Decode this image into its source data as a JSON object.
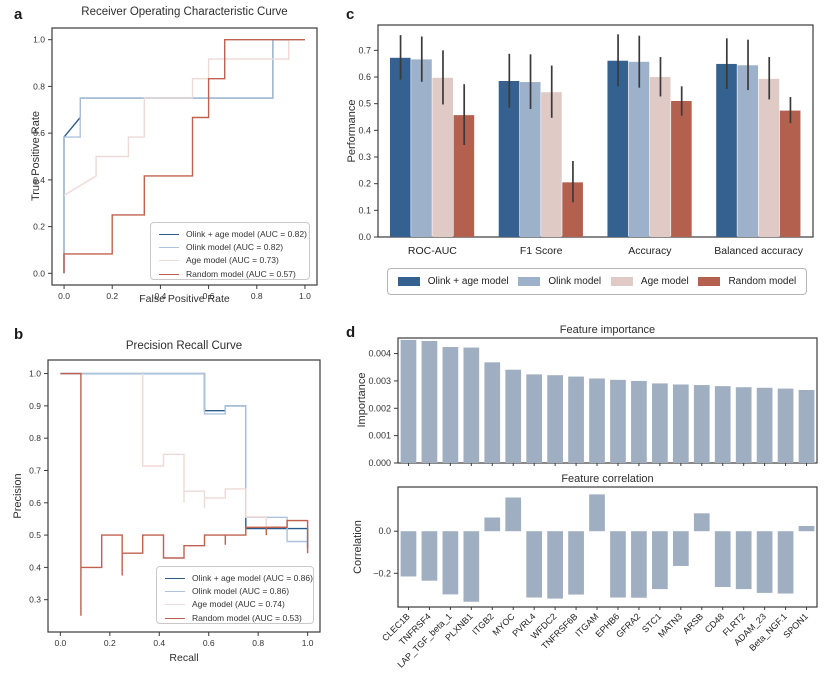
{
  "panel_labels": {
    "a": "a",
    "b": "b",
    "c": "c",
    "d": "d"
  },
  "chart_data": [
    {
      "id": "roc",
      "type": "line",
      "panel": "a",
      "title": "Receiver Operating Characteristic Curve",
      "xlabel": "False Positive Rate",
      "ylabel": "True Positive Rate",
      "xlim": [
        -0.05,
        1.05
      ],
      "ylim": [
        -0.05,
        1.05
      ],
      "legend_position": "lower right",
      "grid": false,
      "xticks": [
        {
          "v": 0.0,
          "l": "0.0"
        },
        {
          "v": 0.2,
          "l": "0.2"
        },
        {
          "v": 0.4,
          "l": "0.4"
        },
        {
          "v": 0.6,
          "l": "0.6"
        },
        {
          "v": 0.8,
          "l": "0.8"
        },
        {
          "v": 1.0,
          "l": "1.0"
        }
      ],
      "yticks": [
        {
          "v": 0.0,
          "l": "0.0"
        },
        {
          "v": 0.2,
          "l": "0.2"
        },
        {
          "v": 0.4,
          "l": "0.4"
        },
        {
          "v": 0.6,
          "l": "0.6"
        },
        {
          "v": 0.8,
          "l": "0.8"
        },
        {
          "v": 1.0,
          "l": "1.0"
        }
      ],
      "series": [
        {
          "name": "olink-age-model",
          "label": "Olink + age model (AUC = 0.82)",
          "auc": 0.82,
          "color": "#2d5a8c",
          "points": [
            [
              0,
              0
            ],
            [
              0,
              0.583
            ],
            [
              0.067,
              0.667
            ],
            [
              0.067,
              0.75
            ],
            [
              0.867,
              0.75
            ],
            [
              0.867,
              1
            ],
            [
              1,
              1
            ]
          ]
        },
        {
          "name": "olink-model",
          "label": "Olink model (AUC = 0.82)",
          "auc": 0.82,
          "color": "#aec3dc",
          "points": [
            [
              0,
              0
            ],
            [
              0,
              0.583
            ],
            [
              0.067,
              0.583
            ],
            [
              0.067,
              0.75
            ],
            [
              0.867,
              0.75
            ],
            [
              0.867,
              1
            ],
            [
              1,
              1
            ]
          ]
        },
        {
          "name": "age-model",
          "label": "Age model (AUC = 0.73)",
          "auc": 0.73,
          "color": "#eddad7",
          "points": [
            [
              0,
              0.333
            ],
            [
              0.133,
              0.417
            ],
            [
              0.133,
              0.5
            ],
            [
              0.267,
              0.5
            ],
            [
              0.267,
              0.583
            ],
            [
              0.333,
              0.583
            ],
            [
              0.333,
              0.75
            ],
            [
              0.533,
              0.75
            ],
            [
              0.533,
              0.833
            ],
            [
              0.6,
              0.833
            ],
            [
              0.6,
              0.917
            ],
            [
              0.933,
              0.917
            ],
            [
              0.933,
              1
            ],
            [
              1,
              1
            ]
          ]
        },
        {
          "name": "random-model",
          "label": "Random model (AUC = 0.57)",
          "auc": 0.57,
          "color": "#c0604f",
          "points": [
            [
              0,
              0
            ],
            [
              0,
              0.083
            ],
            [
              0.2,
              0.083
            ],
            [
              0.2,
              0.25
            ],
            [
              0.333,
              0.25
            ],
            [
              0.333,
              0.417
            ],
            [
              0.533,
              0.417
            ],
            [
              0.533,
              0.667
            ],
            [
              0.6,
              0.667
            ],
            [
              0.6,
              0.833
            ],
            [
              0.667,
              0.833
            ],
            [
              0.667,
              1
            ],
            [
              1,
              1
            ]
          ]
        }
      ]
    },
    {
      "id": "pr",
      "type": "line",
      "panel": "b",
      "title": "Precision Recall Curve",
      "xlabel": "Recall",
      "ylabel": "Precision",
      "xlim": [
        -0.05,
        1.05
      ],
      "ylim": [
        0.2,
        1.042
      ],
      "legend_position": "lower right",
      "grid": false,
      "xticks": [
        {
          "v": 0.0,
          "l": "0.0"
        },
        {
          "v": 0.2,
          "l": "0.2"
        },
        {
          "v": 0.4,
          "l": "0.4"
        },
        {
          "v": 0.6,
          "l": "0.6"
        },
        {
          "v": 0.8,
          "l": "0.8"
        },
        {
          "v": 1.0,
          "l": "1.0"
        }
      ],
      "yticks": [
        {
          "v": 0.3,
          "l": "0.3"
        },
        {
          "v": 0.4,
          "l": "0.4"
        },
        {
          "v": 0.5,
          "l": "0.5"
        },
        {
          "v": 0.6,
          "l": "0.6"
        },
        {
          "v": 0.7,
          "l": "0.7"
        },
        {
          "v": 0.8,
          "l": "0.8"
        },
        {
          "v": 0.9,
          "l": "0.9"
        },
        {
          "v": 1.0,
          "l": "1.0"
        }
      ],
      "series": [
        {
          "name": "olink-age-model",
          "label": "Olink + age model (AUC = 0.86)",
          "auc": 0.86,
          "color": "#2d5a8c",
          "points": [
            [
              0,
              1
            ],
            [
              0.583,
              1
            ],
            [
              0.583,
              0.885
            ],
            [
              0.667,
              0.885
            ],
            [
              0.667,
              0.9
            ],
            [
              0.75,
              0.9
            ],
            [
              0.75,
              0.52
            ],
            [
              1,
              0.52
            ],
            [
              1,
              0.46
            ]
          ]
        },
        {
          "name": "olink-model",
          "label": "Olink model (AUC = 0.86)",
          "auc": 0.86,
          "color": "#aec3dc",
          "points": [
            [
              0,
              1
            ],
            [
              0.583,
              1
            ],
            [
              0.583,
              0.875
            ],
            [
              0.667,
              0.875
            ],
            [
              0.667,
              0.9
            ],
            [
              0.75,
              0.9
            ],
            [
              0.75,
              0.555
            ],
            [
              0.917,
              0.555
            ],
            [
              0.917,
              0.48
            ],
            [
              1,
              0.48
            ],
            [
              1,
              0.458
            ]
          ]
        },
        {
          "name": "age-model",
          "label": "Age model (AUC = 0.74)",
          "auc": 0.74,
          "color": "#eddad7",
          "points": [
            [
              0.333,
              1
            ],
            [
              0.333,
              0.714
            ],
            [
              0.417,
              0.714
            ],
            [
              0.417,
              0.75
            ],
            [
              0.5,
              0.75
            ],
            [
              0.5,
              0.6
            ],
            [
              0.5,
              0.636
            ],
            [
              0.583,
              0.636
            ],
            [
              0.583,
              0.583
            ],
            [
              0.583,
              0.615
            ],
            [
              0.667,
              0.615
            ],
            [
              0.667,
              0.643
            ],
            [
              0.75,
              0.643
            ],
            [
              0.75,
              0.556
            ],
            [
              0.833,
              0.556
            ],
            [
              0.833,
              0.525
            ],
            [
              0.917,
              0.525
            ],
            [
              0.917,
              0.545
            ],
            [
              1,
              0.545
            ]
          ]
        },
        {
          "name": "random-model",
          "label": "Random model (AUC = 0.53)",
          "auc": 0.53,
          "color": "#c0604f",
          "points": [
            [
              0,
              1
            ],
            [
              0.083,
              1
            ],
            [
              0.083,
              0.25
            ],
            [
              0.083,
              0.4
            ],
            [
              0.167,
              0.4
            ],
            [
              0.167,
              0.5
            ],
            [
              0.25,
              0.5
            ],
            [
              0.25,
              0.375
            ],
            [
              0.25,
              0.444
            ],
            [
              0.333,
              0.444
            ],
            [
              0.333,
              0.5
            ],
            [
              0.417,
              0.5
            ],
            [
              0.417,
              0.429
            ],
            [
              0.5,
              0.429
            ],
            [
              0.5,
              0.467
            ],
            [
              0.583,
              0.467
            ],
            [
              0.583,
              0.5
            ],
            [
              0.667,
              0.5
            ],
            [
              0.667,
              0.47
            ],
            [
              0.667,
              0.5
            ],
            [
              0.75,
              0.5
            ],
            [
              0.75,
              0.524
            ],
            [
              0.833,
              0.524
            ],
            [
              0.833,
              0.5
            ],
            [
              0.833,
              0.524
            ],
            [
              0.917,
              0.524
            ],
            [
              0.917,
              0.545
            ],
            [
              1,
              0.545
            ],
            [
              1,
              0.444
            ]
          ]
        }
      ]
    },
    {
      "id": "performance",
      "type": "bar",
      "panel": "c",
      "title": "",
      "ylabel": "Performance",
      "categories": [
        "ROC-AUC",
        "F1 Score",
        "Accuracy",
        "Balanced accuracy"
      ],
      "ylim": [
        0,
        0.795
      ],
      "legend_position": "below",
      "grid": false,
      "yticks": [
        {
          "v": 0.0,
          "l": "0.0"
        },
        {
          "v": 0.1,
          "l": "0.1"
        },
        {
          "v": 0.2,
          "l": "0.2"
        },
        {
          "v": 0.3,
          "l": "0.3"
        },
        {
          "v": 0.4,
          "l": "0.4"
        },
        {
          "v": 0.5,
          "l": "0.5"
        },
        {
          "v": 0.6,
          "l": "0.6"
        },
        {
          "v": 0.7,
          "l": "0.7"
        }
      ],
      "errorbar_color": "#3a3a3a",
      "series": [
        {
          "name": "olink-age-model",
          "label": "Olink + age model",
          "color": "#34618f",
          "values": [
            0.672,
            0.585,
            0.661,
            0.649
          ],
          "err_lo": [
            0.59,
            0.485,
            0.565,
            0.555
          ],
          "err_hi": [
            0.757,
            0.687,
            0.76,
            0.745
          ]
        },
        {
          "name": "olink-model",
          "label": "Olink model",
          "color": "#9db1cb",
          "values": [
            0.666,
            0.581,
            0.657,
            0.644
          ],
          "err_lo": [
            0.582,
            0.48,
            0.56,
            0.551
          ],
          "err_hi": [
            0.752,
            0.685,
            0.755,
            0.74
          ]
        },
        {
          "name": "age-model",
          "label": "Age model",
          "color": "#dfcac6",
          "values": [
            0.597,
            0.543,
            0.6,
            0.593
          ],
          "err_lo": [
            0.497,
            0.447,
            0.527,
            0.516
          ],
          "err_hi": [
            0.7,
            0.643,
            0.675,
            0.675
          ]
        },
        {
          "name": "random-model",
          "label": "Random model",
          "color": "#b4604f",
          "values": [
            0.457,
            0.205,
            0.51,
            0.474
          ],
          "err_lo": [
            0.345,
            0.13,
            0.455,
            0.427
          ],
          "err_hi": [
            0.573,
            0.285,
            0.565,
            0.525
          ]
        }
      ]
    },
    {
      "id": "importance",
      "type": "bar",
      "panel": "d",
      "title": "Feature importance",
      "ylabel": "Importance",
      "bar_color": "#a0aec1",
      "ylim": [
        0,
        0.00457
      ],
      "grid": false,
      "yticks": [
        {
          "v": 0.0,
          "l": "0.000"
        },
        {
          "v": 0.001,
          "l": "0.001"
        },
        {
          "v": 0.002,
          "l": "0.002"
        },
        {
          "v": 0.003,
          "l": "0.003"
        },
        {
          "v": 0.004,
          "l": "0.004"
        }
      ],
      "categories": [
        "CLEC1B",
        "TNFRSF4",
        "LAP_TGF_beta_1",
        "PLXNB1",
        "ITGB2",
        "MYOC",
        "PVRL4",
        "WFDC2",
        "TNFRSF6B",
        "ITGAM",
        "EPHB6",
        "GFRA2",
        "STC1",
        "MATN3",
        "ARSB",
        "CD48",
        "FLRT2",
        "ADAM_23",
        "Beta_NGF.1",
        "SPON1"
      ],
      "values": [
        0.0045,
        0.00446,
        0.00424,
        0.00422,
        0.00368,
        0.00341,
        0.00324,
        0.00321,
        0.00316,
        0.00309,
        0.00304,
        0.003,
        0.00291,
        0.00287,
        0.00285,
        0.00281,
        0.00277,
        0.00275,
        0.00272,
        0.00267
      ]
    },
    {
      "id": "correlation",
      "type": "bar",
      "panel": "d",
      "title": "Feature correlation",
      "ylabel": "Correlation",
      "bar_color": "#a0aec1",
      "ylim": [
        -0.36,
        0.21
      ],
      "grid": false,
      "yticks": [
        {
          "v": 0.0,
          "l": "0.0"
        },
        {
          "v": -0.2,
          "l": "−0.2"
        }
      ],
      "categories": [
        "CLEC1B",
        "TNFRSF4",
        "LAP_TGF_beta_1",
        "PLXNB1",
        "ITGB2",
        "MYOC",
        "PVRL4",
        "WFDC2",
        "TNFRSF6B",
        "ITGAM",
        "EPHB6",
        "GFRA2",
        "STC1",
        "MATN3",
        "ARSB",
        "CD48",
        "FLRT2",
        "ADAM_23",
        "Beta_NGF.1",
        "SPON1"
      ],
      "values": [
        -0.215,
        -0.235,
        -0.3,
        -0.335,
        0.065,
        0.16,
        -0.315,
        -0.32,
        -0.301,
        0.175,
        -0.315,
        -0.316,
        -0.275,
        -0.165,
        0.085,
        -0.265,
        -0.275,
        -0.293,
        -0.296,
        0.025
      ]
    }
  ]
}
